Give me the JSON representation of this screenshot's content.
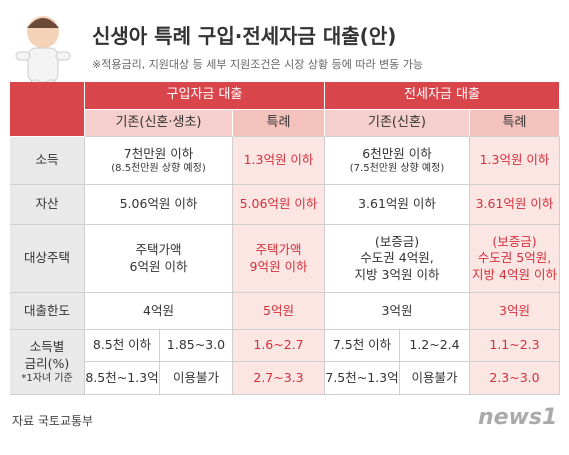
{
  "header": {
    "title": "신생아 특례 구입·전세자금 대출(안)",
    "note": "※적용금리, 지원대상 등 세부 지원조건은 시장 상황 등에 따라 변동 가능"
  },
  "table": {
    "groups": [
      "구입자금 대출",
      "전세자금 대출"
    ],
    "subheaders": [
      "기존(신혼·생초)",
      "특례",
      "기존(신혼)",
      "특례"
    ],
    "rows": [
      {
        "label": "소득",
        "cells": [
          [
            "7천만원 이하",
            "(8.5천만원 상향 예정)"
          ],
          [
            "1.3억원 이하"
          ],
          [
            "6천만원 이하",
            "(7.5천만원 상향 예정)"
          ],
          [
            "1.3억원 이하"
          ]
        ]
      },
      {
        "label": "자산",
        "cells": [
          [
            "5.06억원 이하"
          ],
          [
            "5.06억원 이하"
          ],
          [
            "3.61억원 이하"
          ],
          [
            "3.61억원 이하"
          ]
        ]
      },
      {
        "label": "대상주택",
        "cells": [
          [
            "주택가액",
            "6억원 이하"
          ],
          [
            "주택가액",
            "9억원 이하"
          ],
          [
            "(보증금)",
            "수도권 4억원,",
            "지방 3억원 이하"
          ],
          [
            "(보증금)",
            "수도권 5억원,",
            "지방 4억원 이하"
          ]
        ]
      },
      {
        "label": "대출한도",
        "cells": [
          [
            "4억원"
          ],
          [
            "5억원"
          ],
          [
            "3억원"
          ],
          [
            "3억원"
          ]
        ]
      }
    ],
    "rate": {
      "label": [
        "소득별",
        "금리(%)"
      ],
      "footnote": "*1자녀 기준",
      "rows": [
        [
          "8.5천 이하",
          "1.85~3.0",
          "1.6~2.7",
          "7.5천 이하",
          "1.2~2.4",
          "1.1~2.3"
        ],
        [
          "8.5천~1.3억",
          "이용불가",
          "2.7~3.3",
          "7.5천~1.3억",
          "이용불가",
          "2.3~3.0"
        ]
      ]
    }
  },
  "source": "자료  국토교통부",
  "logo": "news1"
}
